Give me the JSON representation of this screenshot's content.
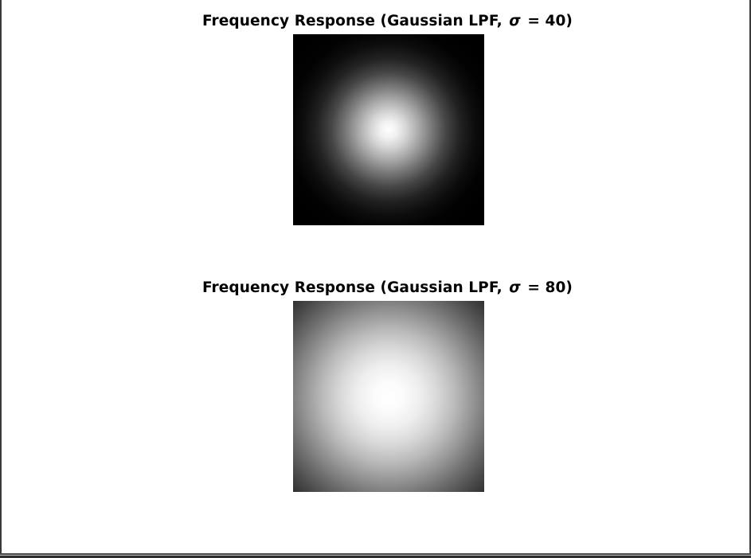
{
  "figure": {
    "panels": [
      {
        "title_prefix": "Frequency Response (Gaussian LPF,",
        "title_symbol": "σ",
        "title_suffix": "= 40)",
        "sigma": 40,
        "colormap": "gray"
      },
      {
        "title_prefix": "Frequency Response (Gaussian LPF,",
        "title_symbol": "σ",
        "title_suffix": "= 80)",
        "sigma": 80,
        "colormap": "gray"
      }
    ]
  },
  "colors": {
    "background": "#ffffff",
    "frame": "#3a3a3a",
    "text": "#000000"
  }
}
